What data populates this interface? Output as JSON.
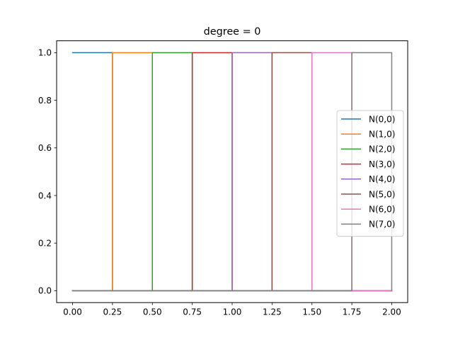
{
  "chart_data": {
    "type": "line",
    "title": "degree = 0",
    "xlabel": "",
    "ylabel": "",
    "xlim": [
      -0.1,
      2.1
    ],
    "ylim": [
      -0.05,
      1.05
    ],
    "x_ticks": [
      "0.00",
      "0.25",
      "0.50",
      "0.75",
      "1.00",
      "1.25",
      "1.50",
      "1.75",
      "2.00"
    ],
    "x_tick_values": [
      0,
      0.25,
      0.5,
      0.75,
      1.0,
      1.25,
      1.5,
      1.75,
      2.0
    ],
    "y_ticks": [
      "0.0",
      "0.2",
      "0.4",
      "0.6",
      "0.8",
      "1.0"
    ],
    "y_tick_values": [
      0,
      0.2,
      0.4,
      0.6,
      0.8,
      1.0
    ],
    "grid": false,
    "legend_position": "center-right",
    "series": [
      {
        "name": "N(0,0)",
        "color": "#1f77b4",
        "x": [
          0,
          0.25,
          0.25,
          2.0
        ],
        "y": [
          1,
          1,
          0,
          0
        ]
      },
      {
        "name": "N(1,0)",
        "color": "#ff7f0e",
        "x": [
          0,
          0.25,
          0.25,
          0.5,
          0.5,
          2.0
        ],
        "y": [
          0,
          0,
          1,
          1,
          0,
          0
        ]
      },
      {
        "name": "N(2,0)",
        "color": "#2ca02c",
        "x": [
          0,
          0.5,
          0.5,
          0.75,
          0.75,
          2.0
        ],
        "y": [
          0,
          0,
          1,
          1,
          0,
          0
        ]
      },
      {
        "name": "N(3,0)",
        "color": "#d62728",
        "x": [
          0,
          0.75,
          0.75,
          1.0,
          1.0,
          2.0
        ],
        "y": [
          0,
          0,
          1,
          1,
          0,
          0
        ]
      },
      {
        "name": "N(4,0)",
        "color": "#9467bd",
        "x": [
          0,
          1.0,
          1.0,
          1.25,
          1.25,
          2.0
        ],
        "y": [
          0,
          0,
          1,
          1,
          0,
          0
        ]
      },
      {
        "name": "N(5,0)",
        "color": "#8c564b",
        "x": [
          0,
          1.25,
          1.25,
          1.5,
          1.5,
          2.0
        ],
        "y": [
          0,
          0,
          1,
          1,
          0,
          0
        ]
      },
      {
        "name": "N(6,0)",
        "color": "#e377c2",
        "x": [
          0,
          1.5,
          1.5,
          1.75,
          1.75,
          2.0
        ],
        "y": [
          0,
          0,
          1,
          1,
          0,
          0
        ]
      },
      {
        "name": "N(7,0)",
        "color": "#7f7f7f",
        "x": [
          0,
          1.75,
          1.75,
          2.0,
          2.0
        ],
        "y": [
          0,
          0,
          1,
          1,
          0
        ]
      }
    ]
  }
}
